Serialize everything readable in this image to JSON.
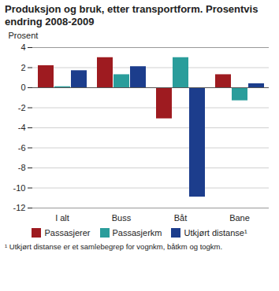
{
  "chart_data": {
    "type": "bar",
    "title": "Produksjon og bruk, etter transportform. Prosentvis endring 2008-2009",
    "y_label": "Prosent",
    "footnote": "¹ Utkjørt distanse er et samlebegrep for vognkm, båtkm og togkm.",
    "categories": [
      "I alt",
      "Buss",
      "Båt",
      "Bane"
    ],
    "series": [
      {
        "name": "Passasjerer",
        "color": "#9e1b20",
        "values": [
          2.2,
          3.0,
          -3.1,
          1.3
        ]
      },
      {
        "name": "Passasjerkm",
        "color": "#2a9d9b",
        "values": [
          0.1,
          1.3,
          3.0,
          -1.3
        ]
      },
      {
        "name": "Utkjørt distanse¹",
        "color": "#1c3d8c",
        "values": [
          1.7,
          2.1,
          -10.9,
          0.4
        ]
      }
    ],
    "ylim": [
      -12,
      4
    ],
    "yticks": [
      -12,
      -10,
      -8,
      -6,
      -4,
      -2,
      0,
      2,
      4
    ],
    "grid": true,
    "legend": "bottom"
  }
}
